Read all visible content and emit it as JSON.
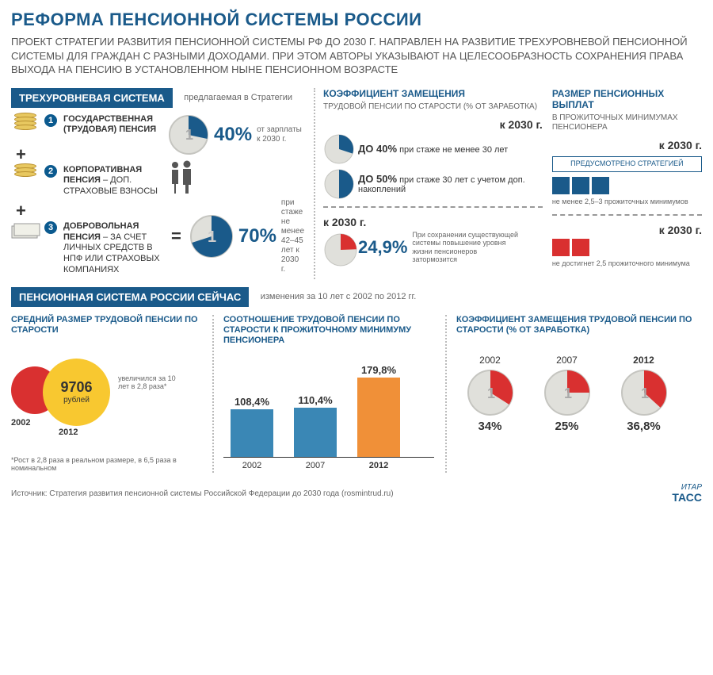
{
  "title": "РЕФОРМА ПЕНСИОННОЙ СИСТЕМЫ РОССИИ",
  "subtitle": "ПРОЕКТ СТРАТЕГИИ РАЗВИТИЯ ПЕНСИОННОЙ СИСТЕМЫ РФ ДО 2030 Г. НАПРАВЛЕН НА РАЗВИТИЕ ТРЕХУРОВНЕВОЙ ПЕНСИОННОЙ СИСТЕМЫ ДЛЯ ГРАЖДАН С РАЗНЫМИ ДОХОДАМИ. ПРИ ЭТОМ АВТОРЫ УКАЗЫВАЮТ НА ЦЕЛЕСООБРАЗНОСТЬ СОХРАНЕНИЯ ПРАВА ВЫХОДА НА ПЕНСИЮ В УСТАНОВЛЕННОМ НЫНЕ ПЕНСИОННОМ ВОЗРАСТЕ",
  "colors": {
    "blue": "#1a5a8a",
    "red": "#d93030",
    "yellow": "#f8c830",
    "orange": "#f09038",
    "bar_blue": "#3a87b5",
    "coin": "#e0e0db",
    "gray": "#666"
  },
  "three_level": {
    "bar": "ТРЕХУРОВНЕВАЯ СИСТЕМА",
    "bar_note": "предлагаемая в Стратегии",
    "items": [
      {
        "n": "1",
        "title": "ГОСУДАРСТВЕННАЯ (ТРУДОВАЯ) ПЕНСИЯ",
        "desc": ""
      },
      {
        "n": "2",
        "title": "КОРПОРАТИВНАЯ ПЕНСИЯ",
        "desc": " – ДОП. СТРАХОВЫЕ ВЗНОСЫ"
      },
      {
        "n": "3",
        "title": "ДОБРОВОЛЬНАЯ ПЕНСИЯ",
        "desc": " – ЗА СЧЕТ ЛИЧНЫХ СРЕДСТВ В НПФ ИЛИ СТРАХОВЫХ КОМПАНИЯХ"
      }
    ],
    "pie40": {
      "pct": 40,
      "label": "40%",
      "note": "от зарплаты к 2030 г.",
      "color": "#1a5a8a"
    },
    "pie70": {
      "pct": 70,
      "label": "70%",
      "note": "при стаже не менее 42–45 лет к 2030 г.",
      "color": "#1a5a8a"
    }
  },
  "replacement": {
    "title": "КОЭФФИЦИЕНТ ЗАМЕЩЕНИЯ",
    "sub": "ТРУДОВОЙ ПЕНСИИ ПО СТАРОСТИ (% ОТ ЗАРАБОТКА)",
    "target_year": "к 2030 г.",
    "rows": [
      {
        "pct": 40,
        "label": "ДО 40%",
        "note": "при стаже не менее 30 лет"
      },
      {
        "pct": 50,
        "label": "ДО 50%",
        "note": "при стаже 30 лет с учетом доп. накоплений"
      }
    ],
    "alt_year": "к 2030 г.",
    "alt_pct": 24.9,
    "alt_label": "24,9%",
    "alt_note": "При сохранении существующей системы повышение уровня жизни пенсионеров затормозится"
  },
  "payouts": {
    "title": "РАЗМЕР ПЕНСИОННЫХ ВЫПЛАТ",
    "sub": "В ПРОЖИТОЧНЫХ МИНИМУМАХ ПЕНСИОНЕРА",
    "target_year": "к 2030 г.",
    "strategy_box": "ПРЕДУСМОТРЕНО СТРАТЕГИЕЙ",
    "good": {
      "squares": 3,
      "color": "#1a5a8a",
      "note": "не менее 2,5–3 прожиточных минимумов"
    },
    "alt_year": "к 2030 г.",
    "bad": {
      "squares": 2,
      "color": "#d93030",
      "note": "не достигнет 2,5 прожиточного минимума"
    }
  },
  "now": {
    "bar": "ПЕНСИОННАЯ СИСТЕМА РОССИИ СЕЙЧАС",
    "bar_note": "изменения за 10 лет с 2002 по 2012 гг.",
    "avg": {
      "title": "СРЕДНИЙ РАЗМЕР ТРУДОВОЙ ПЕНСИИ ПО СТАРОСТИ",
      "y2002": "2002",
      "y2012": "2012",
      "value": "9706",
      "unit": "рублей",
      "side_note": "увеличился за 10 лет в 2,8 раза*",
      "foot": "*Рост в 2,8 раза в реальном размере, в 6,5 раза в номинальном"
    },
    "ratio": {
      "title": "СООТНОШЕНИЕ ТРУДОВОЙ ПЕНСИИ ПО СТАРОСТИ К ПРОЖИТОЧНОМУ МИНИМУМУ ПЕНСИОНЕРА",
      "bars": [
        {
          "year": "2002",
          "value": 108.4,
          "label": "108,4%",
          "color": "#3a87b5",
          "h": 60
        },
        {
          "year": "2007",
          "value": 110.4,
          "label": "110,4%",
          "color": "#3a87b5",
          "h": 62
        },
        {
          "year": "2012",
          "value": 179.8,
          "label": "179,8%",
          "color": "#f09038",
          "h": 100,
          "bold": true
        }
      ]
    },
    "repl": {
      "title": "КОЭФФИЦИЕНТ ЗАМЕЩЕНИЯ ТРУДОВОЙ ПЕНСИИ ПО СТАРОСТИ (% ОТ ЗАРАБОТКА)",
      "items": [
        {
          "year": "2002",
          "pct": 34,
          "label": "34%"
        },
        {
          "year": "2007",
          "pct": 25,
          "label": "25%"
        },
        {
          "year": "2012",
          "pct": 36.8,
          "label": "36,8%",
          "bold": true
        }
      ]
    }
  },
  "source": "Источник: Стратегия развития пенсионной системы Российской Федерации до 2030 года (rosmintrud.ru)",
  "logo": {
    "top": "ИТАР",
    "bot": "ТАСС"
  }
}
